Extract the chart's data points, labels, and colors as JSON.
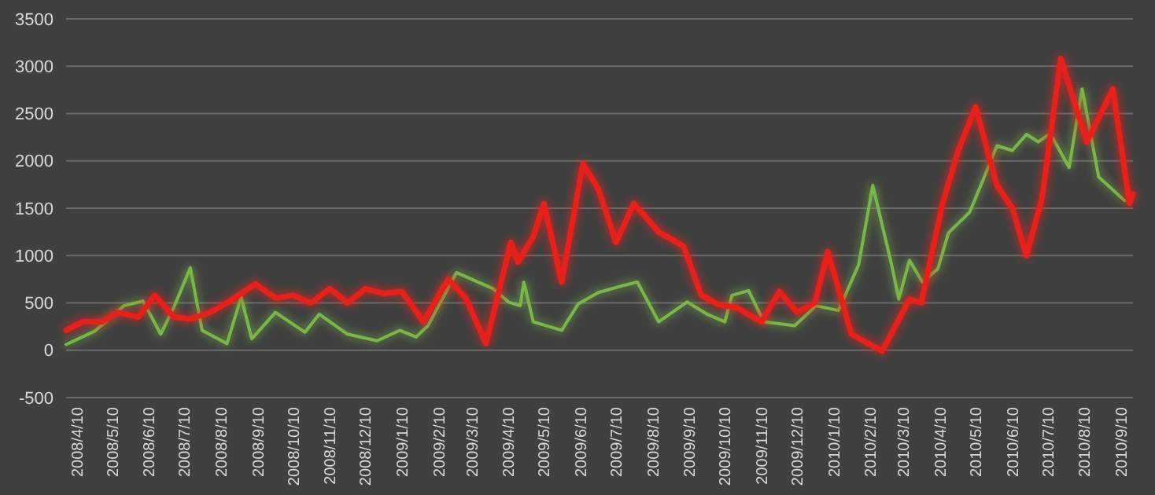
{
  "chart_data": {
    "type": "line",
    "ylim": [
      -500,
      3500
    ],
    "yticks": [
      -500,
      0,
      500,
      1000,
      1500,
      2000,
      2500,
      3000,
      3500
    ],
    "grid": "y",
    "marker": "none",
    "line_style": "solid",
    "xlim": [
      "2008-04-01",
      "2010-09-20"
    ],
    "xticks": [
      {
        "value": "2008-04-10",
        "label": "2008/4/10"
      },
      {
        "value": "2008-05-10",
        "label": "2008/5/10"
      },
      {
        "value": "2008-06-10",
        "label": "2008/6/10"
      },
      {
        "value": "2008-07-10",
        "label": "2008/7/10"
      },
      {
        "value": "2008-08-10",
        "label": "2008/8/10"
      },
      {
        "value": "2008-09-10",
        "label": "2008/9/10"
      },
      {
        "value": "2008-10-10",
        "label": "2008/10/10"
      },
      {
        "value": "2008-11-10",
        "label": "2008/11/10"
      },
      {
        "value": "2008-12-10",
        "label": "2008/12/10"
      },
      {
        "value": "2009-01-10",
        "label": "2009/1/10"
      },
      {
        "value": "2009-02-10",
        "label": "2009/2/10"
      },
      {
        "value": "2009-03-10",
        "label": "2009/3/10"
      },
      {
        "value": "2009-04-10",
        "label": "2009/4/10"
      },
      {
        "value": "2009-05-10",
        "label": "2009/5/10"
      },
      {
        "value": "2009-06-10",
        "label": "2009/6/10"
      },
      {
        "value": "2009-07-10",
        "label": "2009/7/10"
      },
      {
        "value": "2009-08-10",
        "label": "2009/8/10"
      },
      {
        "value": "2009-09-10",
        "label": "2009/9/10"
      },
      {
        "value": "2009-10-10",
        "label": "2009/10/10"
      },
      {
        "value": "2009-11-10",
        "label": "2009/11/10"
      },
      {
        "value": "2009-12-10",
        "label": "2009/12/10"
      },
      {
        "value": "2010-01-10",
        "label": "2010/1/10"
      },
      {
        "value": "2010-02-10",
        "label": "2010/2/10"
      },
      {
        "value": "2010-03-10",
        "label": "2010/3/10"
      },
      {
        "value": "2010-04-10",
        "label": "2010/4/10"
      },
      {
        "value": "2010-05-10",
        "label": "2010/5/10"
      },
      {
        "value": "2010-06-10",
        "label": "2010/6/10"
      },
      {
        "value": "2010-07-10",
        "label": "2010/7/10"
      },
      {
        "value": "2010-08-10",
        "label": "2010/8/10"
      },
      {
        "value": "2010-09-10",
        "label": "2010/9/10"
      }
    ],
    "series": [
      {
        "color": "#7ab648",
        "x": [
          "2008-04-01",
          "2008-04-25",
          "2008-05-20",
          "2008-06-05",
          "2008-06-20",
          "2008-07-01",
          "2008-07-15",
          "2008-07-25",
          "2008-08-15",
          "2008-08-27",
          "2008-09-05",
          "2008-09-25",
          "2008-10-20",
          "2008-11-01",
          "2008-11-25",
          "2008-12-20",
          "2009-01-08",
          "2009-01-22",
          "2009-02-01",
          "2009-02-25",
          "2009-03-28",
          "2009-04-10",
          "2009-04-20",
          "2009-04-23",
          "2009-05-01",
          "2009-05-25",
          "2009-06-08",
          "2009-06-25",
          "2009-07-15",
          "2009-07-28",
          "2009-08-15",
          "2009-09-08",
          "2009-09-25",
          "2009-10-10",
          "2009-10-16",
          "2009-10-30",
          "2009-11-12",
          "2009-12-08",
          "2009-12-26",
          "2010-01-14",
          "2010-01-31",
          "2010-02-12",
          "2010-02-28",
          "2010-03-06",
          "2010-03-15",
          "2010-03-26",
          "2010-04-08",
          "2010-04-17",
          "2010-05-05",
          "2010-05-16",
          "2010-05-28",
          "2010-06-10",
          "2010-06-22",
          "2010-07-02",
          "2010-07-12",
          "2010-07-28",
          "2010-08-08",
          "2010-08-22",
          "2010-09-13"
        ],
        "values": [
          60,
          200,
          470,
          520,
          170,
          450,
          870,
          210,
          70,
          560,
          120,
          400,
          190,
          380,
          170,
          100,
          210,
          140,
          260,
          820,
          650,
          510,
          470,
          720,
          300,
          210,
          490,
          610,
          680,
          720,
          300,
          510,
          380,
          300,
          580,
          630,
          300,
          260,
          470,
          420,
          900,
          1740,
          900,
          540,
          950,
          720,
          860,
          1240,
          1460,
          1790,
          2160,
          2110,
          2280,
          2200,
          2290,
          1930,
          2760,
          1830,
          1580
        ]
      },
      {
        "color": "#e8201a",
        "x": [
          "2008-04-01",
          "2008-04-15",
          "2008-05-01",
          "2008-05-15",
          "2008-06-01",
          "2008-06-15",
          "2008-07-01",
          "2008-07-15",
          "2008-08-01",
          "2008-08-15",
          "2008-09-08",
          "2008-09-25",
          "2008-10-10",
          "2008-10-25",
          "2008-11-10",
          "2008-11-25",
          "2008-12-10",
          "2008-12-25",
          "2009-01-10",
          "2009-01-28",
          "2009-02-18",
          "2009-03-05",
          "2009-03-22",
          "2009-04-12",
          "2009-04-18",
          "2009-05-01",
          "2009-05-10",
          "2009-05-25",
          "2009-06-12",
          "2009-06-25",
          "2009-07-10",
          "2009-07-25",
          "2009-08-15",
          "2009-09-05",
          "2009-09-20",
          "2009-10-05",
          "2009-10-20",
          "2009-11-10",
          "2009-11-25",
          "2009-12-10",
          "2009-12-25",
          "2010-01-05",
          "2010-01-25",
          "2010-02-20",
          "2010-03-15",
          "2010-03-25",
          "2010-04-12",
          "2010-04-25",
          "2010-05-10",
          "2010-05-28",
          "2010-06-10",
          "2010-06-22",
          "2010-07-05",
          "2010-07-21",
          "2010-08-12",
          "2010-09-03",
          "2010-09-17",
          "2010-09-20"
        ],
        "values": [
          210,
          300,
          300,
          400,
          350,
          580,
          350,
          330,
          400,
          500,
          700,
          550,
          580,
          500,
          650,
          500,
          650,
          600,
          620,
          300,
          750,
          550,
          70,
          1140,
          930,
          1200,
          1550,
          720,
          1970,
          1700,
          1140,
          1550,
          1250,
          1100,
          580,
          480,
          450,
          300,
          620,
          400,
          500,
          1040,
          170,
          -10,
          540,
          500,
          1550,
          2100,
          2570,
          1740,
          1500,
          1000,
          1600,
          3080,
          2200,
          2760,
          1550,
          1650
        ]
      }
    ]
  }
}
